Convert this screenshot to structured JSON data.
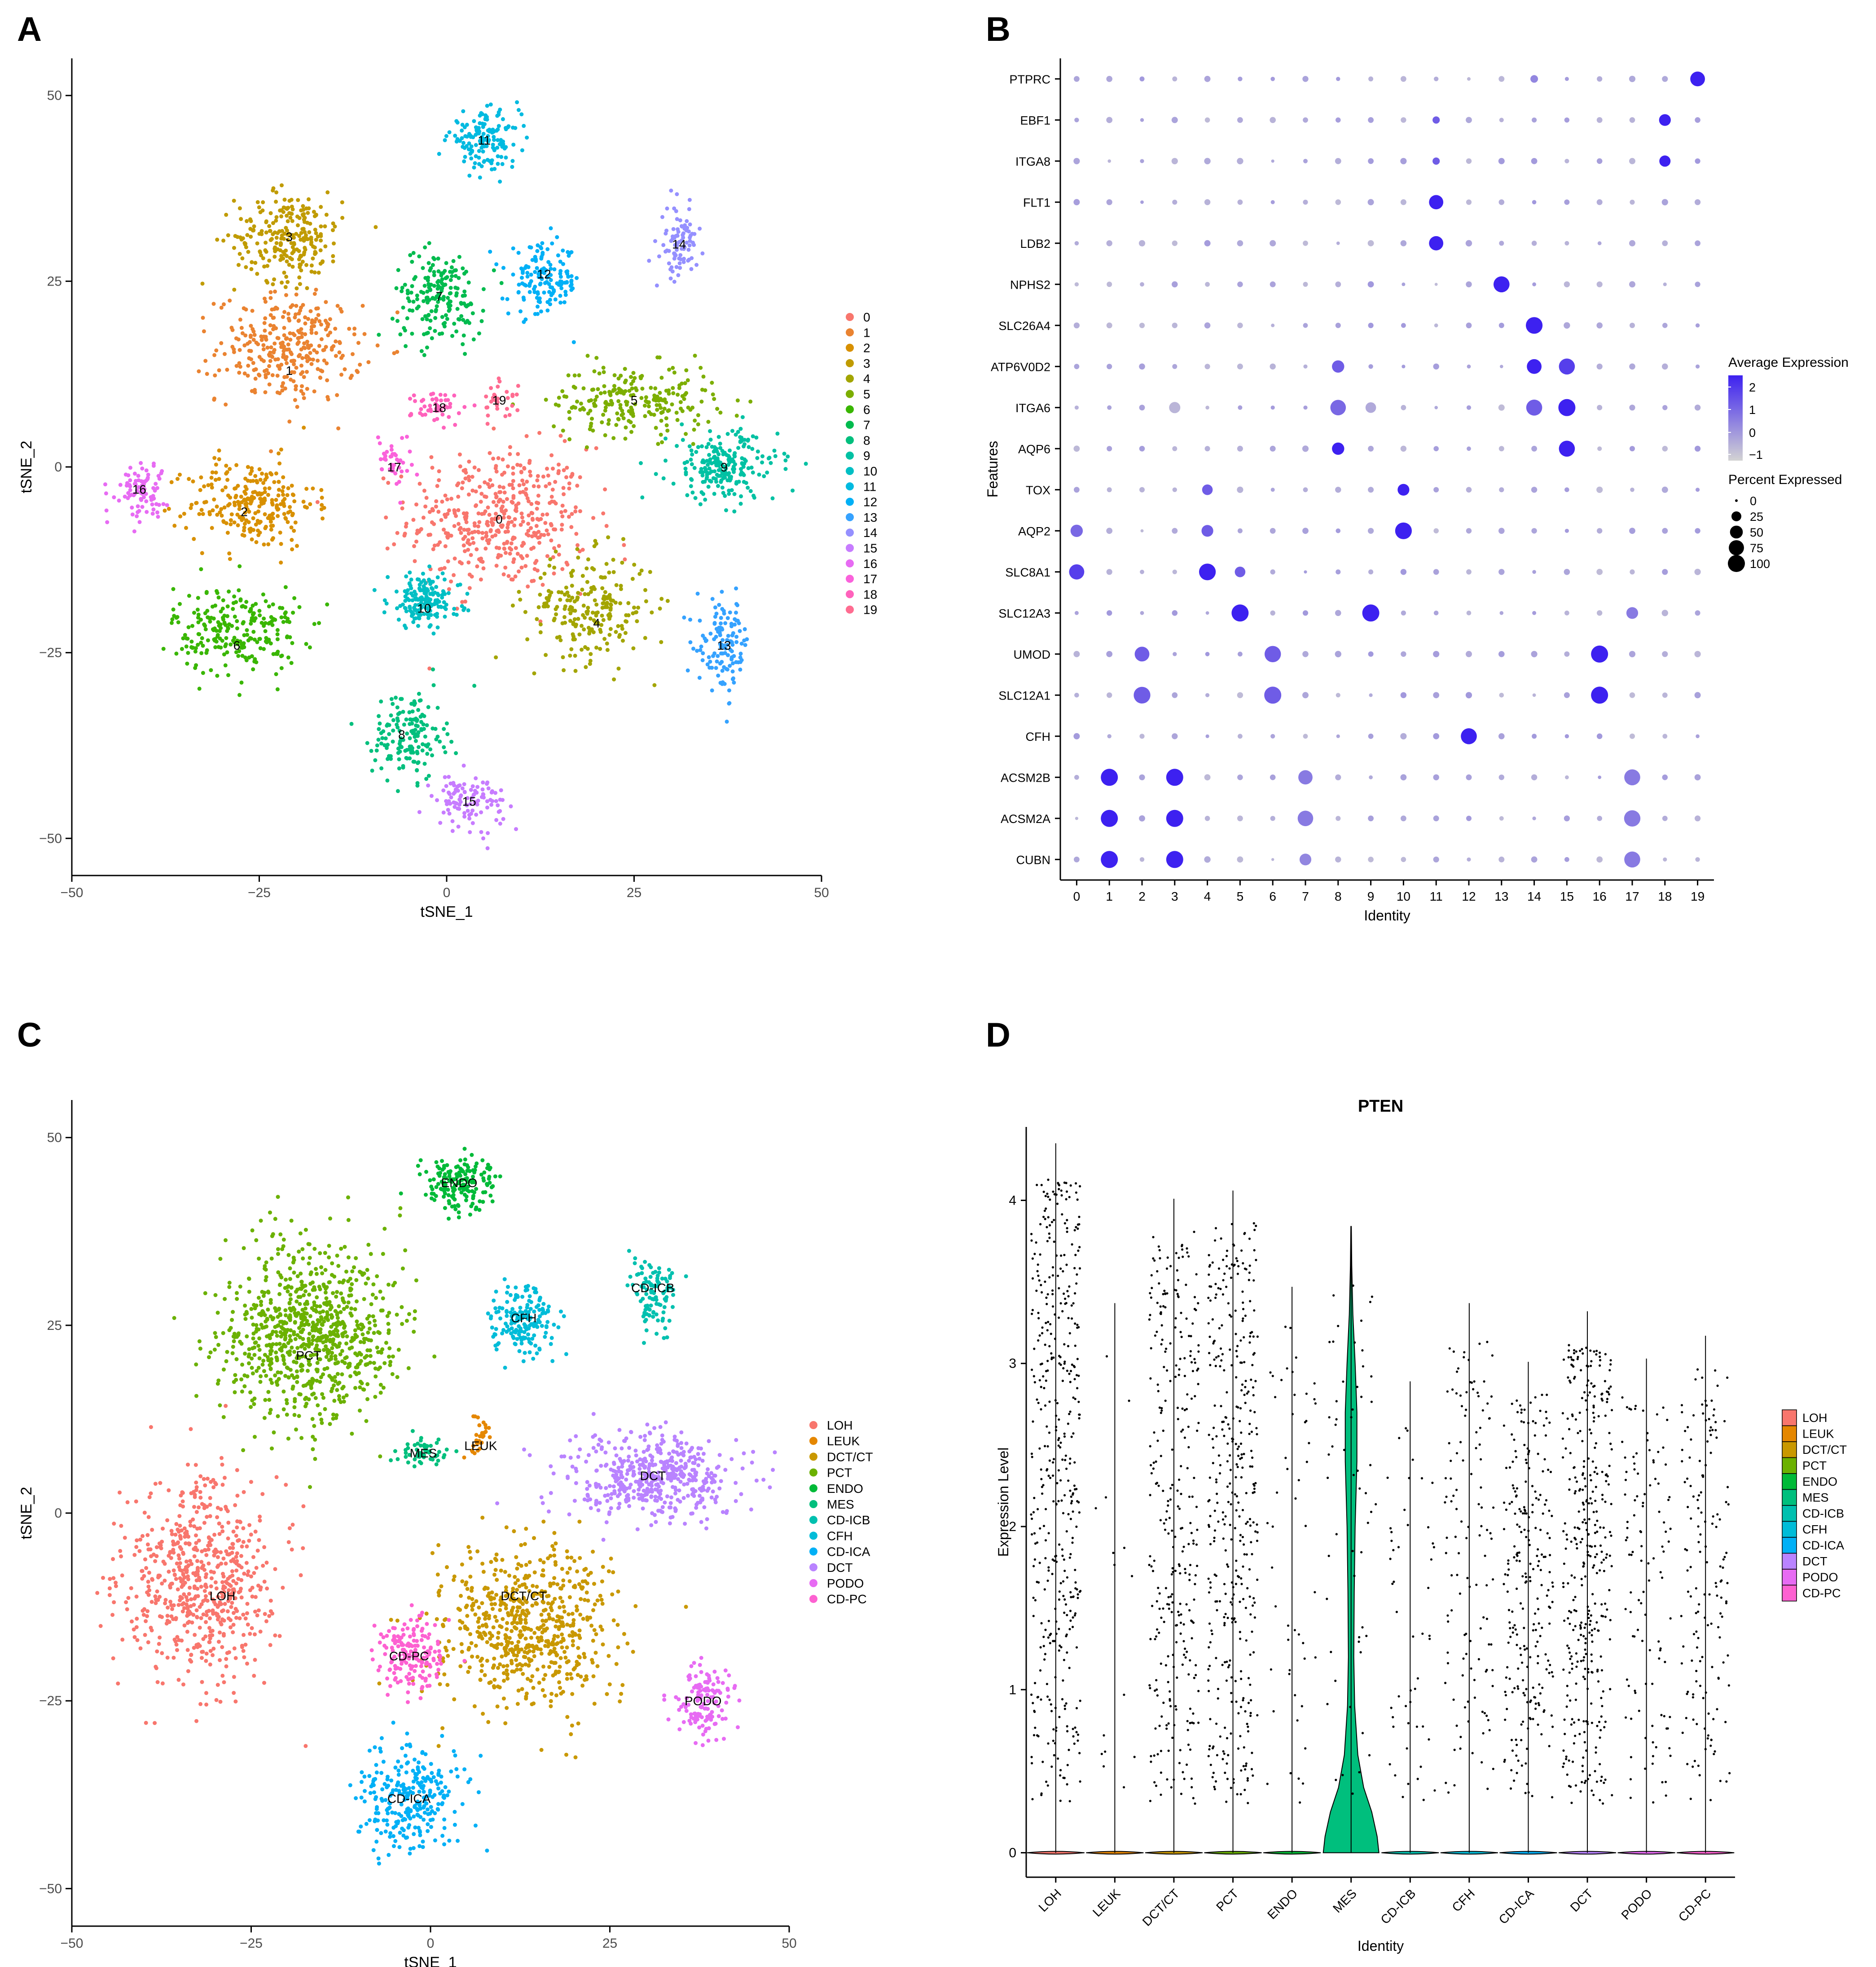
{
  "panels": {
    "A": {
      "letter": "A"
    },
    "B": {
      "letter": "B"
    },
    "C": {
      "letter": "C"
    },
    "D": {
      "letter": "D"
    }
  },
  "chart_data": [
    {
      "id": "tsne_clusters",
      "type": "scatter",
      "xlabel": "tSNE_1",
      "ylabel": "tSNE_2",
      "xlim": [
        -50,
        50
      ],
      "ylim": [
        -55,
        55
      ],
      "xticks": [
        -50,
        -25,
        0,
        25,
        50
      ],
      "yticks": [
        -50,
        -25,
        0,
        25,
        50
      ],
      "legend": {
        "position": "right",
        "entries": [
          "0",
          "1",
          "2",
          "3",
          "4",
          "5",
          "6",
          "7",
          "8",
          "9",
          "10",
          "11",
          "12",
          "13",
          "14",
          "15",
          "16",
          "17",
          "18",
          "19"
        ]
      },
      "clusters": [
        {
          "name": "0",
          "color": "#F8766D",
          "center": [
            7,
            -7
          ],
          "spread": [
            10,
            8
          ],
          "n": 450,
          "labelpos": [
            7,
            -7
          ]
        },
        {
          "name": "1",
          "color": "#EA8331",
          "center": [
            -21,
            16
          ],
          "spread": [
            8,
            6
          ],
          "n": 320,
          "labelpos": [
            -21,
            13
          ]
        },
        {
          "name": "2",
          "color": "#D89000",
          "center": [
            -26,
            -5
          ],
          "spread": [
            7,
            5
          ],
          "n": 260,
          "labelpos": [
            -27,
            -6
          ]
        },
        {
          "name": "3",
          "color": "#C09B00",
          "center": [
            -21,
            31
          ],
          "spread": [
            6,
            5
          ],
          "n": 250,
          "labelpos": [
            -21,
            31
          ]
        },
        {
          "name": "4",
          "color": "#A3A500",
          "center": [
            19,
            -19
          ],
          "spread": [
            7,
            6
          ],
          "n": 230,
          "labelpos": [
            20,
            -21
          ]
        },
        {
          "name": "5",
          "color": "#7CAE00",
          "center": [
            25,
            9
          ],
          "spread": [
            9,
            4
          ],
          "n": 230,
          "labelpos": [
            25,
            9
          ]
        },
        {
          "name": "6",
          "color": "#39B600",
          "center": [
            -28,
            -22
          ],
          "spread": [
            7,
            5
          ],
          "n": 250,
          "labelpos": [
            -28,
            -24
          ]
        },
        {
          "name": "7",
          "color": "#00BB4E",
          "center": [
            -1,
            23
          ],
          "spread": [
            5,
            5
          ],
          "n": 190,
          "labelpos": [
            -1,
            23
          ]
        },
        {
          "name": "8",
          "color": "#00BF7D",
          "center": [
            -5,
            -36
          ],
          "spread": [
            4,
            5
          ],
          "n": 160,
          "labelpos": [
            -6,
            -36
          ]
        },
        {
          "name": "9",
          "color": "#00C1A3",
          "center": [
            37,
            0
          ],
          "spread": [
            6,
            4
          ],
          "n": 220,
          "labelpos": [
            37,
            0
          ]
        },
        {
          "name": "10",
          "color": "#00BFC4",
          "center": [
            -3,
            -18
          ],
          "spread": [
            4,
            3
          ],
          "n": 170,
          "labelpos": [
            -3,
            -19
          ]
        },
        {
          "name": "11",
          "color": "#00BAE0",
          "center": [
            5,
            44
          ],
          "spread": [
            4,
            3
          ],
          "n": 150,
          "labelpos": [
            5,
            44
          ]
        },
        {
          "name": "12",
          "color": "#00B0F6",
          "center": [
            13,
            25
          ],
          "spread": [
            4,
            4
          ],
          "n": 150,
          "labelpos": [
            13,
            26
          ]
        },
        {
          "name": "13",
          "color": "#35A2FF",
          "center": [
            37,
            -24
          ],
          "spread": [
            3,
            5
          ],
          "n": 130,
          "labelpos": [
            37,
            -24
          ]
        },
        {
          "name": "14",
          "color": "#9590FF",
          "center": [
            31,
            30
          ],
          "spread": [
            2,
            4
          ],
          "n": 90,
          "labelpos": [
            31,
            30
          ]
        },
        {
          "name": "15",
          "color": "#C77CFF",
          "center": [
            3,
            -45
          ],
          "spread": [
            4,
            3
          ],
          "n": 110,
          "labelpos": [
            3,
            -45
          ]
        },
        {
          "name": "16",
          "color": "#E76BF3",
          "center": [
            -41,
            -3
          ],
          "spread": [
            3,
            3
          ],
          "n": 90,
          "labelpos": [
            -41,
            -3
          ]
        },
        {
          "name": "17",
          "color": "#FA62DB",
          "center": [
            -7,
            1
          ],
          "spread": [
            2,
            3
          ],
          "n": 40,
          "labelpos": [
            -7,
            0
          ]
        },
        {
          "name": "18",
          "color": "#FF62BC",
          "center": [
            -1,
            8
          ],
          "spread": [
            3,
            2
          ],
          "n": 50,
          "labelpos": [
            -1,
            8
          ]
        },
        {
          "name": "19",
          "color": "#FF6C91",
          "center": [
            7,
            9
          ],
          "spread": [
            2,
            2
          ],
          "n": 30,
          "labelpos": [
            7,
            9
          ]
        }
      ]
    },
    {
      "id": "dotplot",
      "type": "dotplot",
      "xlabel": "Identity",
      "ylabel": "Features",
      "identities": [
        "0",
        "1",
        "2",
        "3",
        "4",
        "5",
        "6",
        "7",
        "8",
        "9",
        "10",
        "11",
        "12",
        "13",
        "14",
        "15",
        "16",
        "17",
        "18",
        "19"
      ],
      "features": [
        "PTPRC",
        "EBF1",
        "ITGA8",
        "FLT1",
        "LDB2",
        "NPHS2",
        "SLC26A4",
        "ATP6V0D2",
        "ITGA6",
        "AQP6",
        "TOX",
        "AQP2",
        "SLC8A1",
        "SLC12A3",
        "UMOD",
        "SLC12A1",
        "CFH",
        "ACSM2B",
        "ACSM2A",
        "CUBN"
      ],
      "legend_expression": {
        "title": "Average Expression",
        "ticks": [
          "2",
          "1",
          "0",
          "−1"
        ],
        "low_color": "#D3D3D3",
        "high_color": "#3D21F0"
      },
      "legend_percent": {
        "title": "Percent Expressed",
        "ticks": [
          "0",
          "25",
          "50",
          "75",
          "100"
        ]
      },
      "highlights": [
        {
          "feature": "PTPRC",
          "identity": "19",
          "pct": 70,
          "expr": 2
        },
        {
          "feature": "PTPRC",
          "identity": "14",
          "pct": 12,
          "expr": 0.3
        },
        {
          "feature": "EBF1",
          "identity": "18",
          "pct": 40,
          "expr": 2
        },
        {
          "feature": "EBF1",
          "identity": "11",
          "pct": 10,
          "expr": 1
        },
        {
          "feature": "ITGA8",
          "identity": "18",
          "pct": 35,
          "expr": 2
        },
        {
          "feature": "ITGA8",
          "identity": "11",
          "pct": 10,
          "expr": 1
        },
        {
          "feature": "FLT1",
          "identity": "11",
          "pct": 65,
          "expr": 2
        },
        {
          "feature": "LDB2",
          "identity": "11",
          "pct": 65,
          "expr": 2
        },
        {
          "feature": "NPHS2",
          "identity": "13",
          "pct": 85,
          "expr": 2
        },
        {
          "feature": "SLC26A4",
          "identity": "14",
          "pct": 95,
          "expr": 2
        },
        {
          "feature": "ATP6V0D2",
          "identity": "14",
          "pct": 70,
          "expr": 2
        },
        {
          "feature": "ATP6V0D2",
          "identity": "15",
          "pct": 85,
          "expr": 1.5
        },
        {
          "feature": "ATP6V0D2",
          "identity": "8",
          "pct": 45,
          "expr": 1
        },
        {
          "feature": "ITGA6",
          "identity": "15",
          "pct": 100,
          "expr": 2
        },
        {
          "feature": "ITGA6",
          "identity": "14",
          "pct": 85,
          "expr": 1
        },
        {
          "feature": "ITGA6",
          "identity": "8",
          "pct": 80,
          "expr": 0.8
        },
        {
          "feature": "ITGA6",
          "identity": "3",
          "pct": 35,
          "expr": -0.5
        },
        {
          "feature": "ITGA6",
          "identity": "9",
          "pct": 30,
          "expr": -0.3
        },
        {
          "feature": "AQP6",
          "identity": "15",
          "pct": 85,
          "expr": 2
        },
        {
          "feature": "AQP6",
          "identity": "8",
          "pct": 45,
          "expr": 2
        },
        {
          "feature": "TOX",
          "identity": "10",
          "pct": 40,
          "expr": 2
        },
        {
          "feature": "TOX",
          "identity": "4",
          "pct": 30,
          "expr": 1
        },
        {
          "feature": "AQP2",
          "identity": "10",
          "pct": 95,
          "expr": 2
        },
        {
          "feature": "AQP2",
          "identity": "4",
          "pct": 40,
          "expr": 1
        },
        {
          "feature": "AQP2",
          "identity": "0",
          "pct": 45,
          "expr": 0.8
        },
        {
          "feature": "SLC8A1",
          "identity": "4",
          "pct": 95,
          "expr": 2
        },
        {
          "feature": "SLC8A1",
          "identity": "0",
          "pct": 75,
          "expr": 1.5
        },
        {
          "feature": "SLC8A1",
          "identity": "5",
          "pct": 30,
          "expr": 1
        },
        {
          "feature": "SLC12A3",
          "identity": "5",
          "pct": 100,
          "expr": 2
        },
        {
          "feature": "SLC12A3",
          "identity": "9",
          "pct": 100,
          "expr": 2
        },
        {
          "feature": "SLC12A3",
          "identity": "17",
          "pct": 40,
          "expr": 0.5
        },
        {
          "feature": "UMOD",
          "identity": "16",
          "pct": 100,
          "expr": 2
        },
        {
          "feature": "UMOD",
          "identity": "6",
          "pct": 90,
          "expr": 1
        },
        {
          "feature": "UMOD",
          "identity": "2",
          "pct": 70,
          "expr": 1
        },
        {
          "feature": "SLC12A1",
          "identity": "16",
          "pct": 100,
          "expr": 2
        },
        {
          "feature": "SLC12A1",
          "identity": "6",
          "pct": 100,
          "expr": 1
        },
        {
          "feature": "SLC12A1",
          "identity": "2",
          "pct": 95,
          "expr": 1
        },
        {
          "feature": "CFH",
          "identity": "12",
          "pct": 85,
          "expr": 2
        },
        {
          "feature": "ACSM2B",
          "identity": "1",
          "pct": 100,
          "expr": 2
        },
        {
          "feature": "ACSM2B",
          "identity": "3",
          "pct": 100,
          "expr": 2
        },
        {
          "feature": "ACSM2B",
          "identity": "17",
          "pct": 85,
          "expr": 0.5
        },
        {
          "feature": "ACSM2B",
          "identity": "7",
          "pct": 65,
          "expr": 0.5
        },
        {
          "feature": "ACSM2A",
          "identity": "1",
          "pct": 100,
          "expr": 2
        },
        {
          "feature": "ACSM2A",
          "identity": "3",
          "pct": 100,
          "expr": 2
        },
        {
          "feature": "ACSM2A",
          "identity": "17",
          "pct": 90,
          "expr": 0.5
        },
        {
          "feature": "ACSM2A",
          "identity": "7",
          "pct": 80,
          "expr": 0.5
        },
        {
          "feature": "CUBN",
          "identity": "1",
          "pct": 100,
          "expr": 2
        },
        {
          "feature": "CUBN",
          "identity": "3",
          "pct": 100,
          "expr": 2
        },
        {
          "feature": "CUBN",
          "identity": "17",
          "pct": 85,
          "expr": 0.5
        },
        {
          "feature": "CUBN",
          "identity": "7",
          "pct": 40,
          "expr": 0.3
        }
      ]
    },
    {
      "id": "tsne_celltypes",
      "type": "scatter",
      "xlabel": "tSNE_1",
      "ylabel": "tSNE_2",
      "xlim": [
        -50,
        50
      ],
      "ylim": [
        -55,
        55
      ],
      "xticks": [
        -50,
        -25,
        0,
        25,
        50
      ],
      "yticks": [
        -50,
        -25,
        0,
        25,
        50
      ],
      "legend": {
        "position": "right",
        "entries": [
          "LOH",
          "LEUK",
          "DCT/CT",
          "PCT",
          "ENDO",
          "MES",
          "CD-ICB",
          "CFH",
          "CD-ICA",
          "DCT",
          "PODO",
          "CD-PC"
        ]
      },
      "clusters": [
        {
          "name": "LOH",
          "color": "#F8766D",
          "center": [
            -32,
            -9
          ],
          "spread": [
            9,
            11
          ],
          "n": 650,
          "labelpos": [
            -29,
            -11
          ]
        },
        {
          "name": "LEUK",
          "color": "#E58700",
          "center": [
            7,
            10
          ],
          "spread": [
            1.5,
            2
          ],
          "n": 30,
          "labelpos": [
            7,
            9
          ]
        },
        {
          "name": "DCT/CT",
          "color": "#C99800",
          "center": [
            13,
            -15
          ],
          "spread": [
            10,
            9
          ],
          "n": 650,
          "labelpos": [
            13,
            -11
          ]
        },
        {
          "name": "PCT",
          "color": "#6BB100",
          "center": [
            -17,
            24
          ],
          "spread": [
            10,
            10
          ],
          "n": 850,
          "labelpos": [
            -17,
            21
          ]
        },
        {
          "name": "ENDO",
          "color": "#00BA38",
          "center": [
            4,
            44
          ],
          "spread": [
            4,
            3
          ],
          "n": 170,
          "labelpos": [
            4,
            44
          ]
        },
        {
          "name": "MES",
          "color": "#00BF7D",
          "center": [
            -1,
            8
          ],
          "spread": [
            3,
            1.5
          ],
          "n": 55,
          "labelpos": [
            -1,
            8
          ]
        },
        {
          "name": "CD-ICB",
          "color": "#00C0AF",
          "center": [
            31,
            29
          ],
          "spread": [
            2.5,
            4
          ],
          "n": 110,
          "labelpos": [
            31,
            30
          ]
        },
        {
          "name": "CFH",
          "color": "#00BCD8",
          "center": [
            13,
            26
          ],
          "spread": [
            4,
            4
          ],
          "n": 170,
          "labelpos": [
            13,
            26
          ]
        },
        {
          "name": "CD-ICA",
          "color": "#00B0F6",
          "center": [
            -3,
            -38
          ],
          "spread": [
            6,
            6
          ],
          "n": 280,
          "labelpos": [
            -3,
            -38
          ]
        },
        {
          "name": "DCT",
          "color": "#B983FF",
          "center": [
            31,
            5
          ],
          "spread": [
            10,
            5
          ],
          "n": 480,
          "labelpos": [
            31,
            5
          ]
        },
        {
          "name": "PODO",
          "color": "#E76BF3",
          "center": [
            38,
            -25
          ],
          "spread": [
            3,
            4
          ],
          "n": 130,
          "labelpos": [
            38,
            -25
          ]
        },
        {
          "name": "CD-PC",
          "color": "#FD61D1",
          "center": [
            -3,
            -19
          ],
          "spread": [
            4,
            4
          ],
          "n": 170,
          "labelpos": [
            -3,
            -19
          ]
        }
      ]
    },
    {
      "id": "violin_pten",
      "type": "violin",
      "title": "PTEN",
      "xlabel": "Identity",
      "ylabel": "Expression Level",
      "ylim": [
        -0.15,
        4.45
      ],
      "yticks": [
        0,
        1,
        2,
        3,
        4
      ],
      "categories": [
        "LOH",
        "LEUK",
        "DCT/CT",
        "PCT",
        "ENDO",
        "MES",
        "CD-ICB",
        "CFH",
        "CD-ICA",
        "DCT",
        "PODO",
        "CD-PC"
      ],
      "colors": [
        "#F8766D",
        "#E58700",
        "#C99800",
        "#6BB100",
        "#00BA38",
        "#00BF7D",
        "#00C0AF",
        "#00BCD8",
        "#00B0F6",
        "#B983FF",
        "#E76BF3",
        "#FD61D1"
      ],
      "max_values": [
        4.35,
        3.37,
        4.01,
        4.06,
        3.47,
        3.84,
        2.89,
        3.37,
        3.01,
        3.32,
        3.03,
        3.17
      ],
      "dot_counts": [
        420,
        15,
        300,
        380,
        50,
        55,
        50,
        120,
        240,
        360,
        110,
        150
      ],
      "legend": {
        "position": "right",
        "entries": [
          "LOH",
          "LEUK",
          "DCT/CT",
          "PCT",
          "ENDO",
          "MES",
          "CD-ICB",
          "CFH",
          "CD-ICA",
          "DCT",
          "PODO",
          "CD-PC"
        ]
      }
    }
  ]
}
